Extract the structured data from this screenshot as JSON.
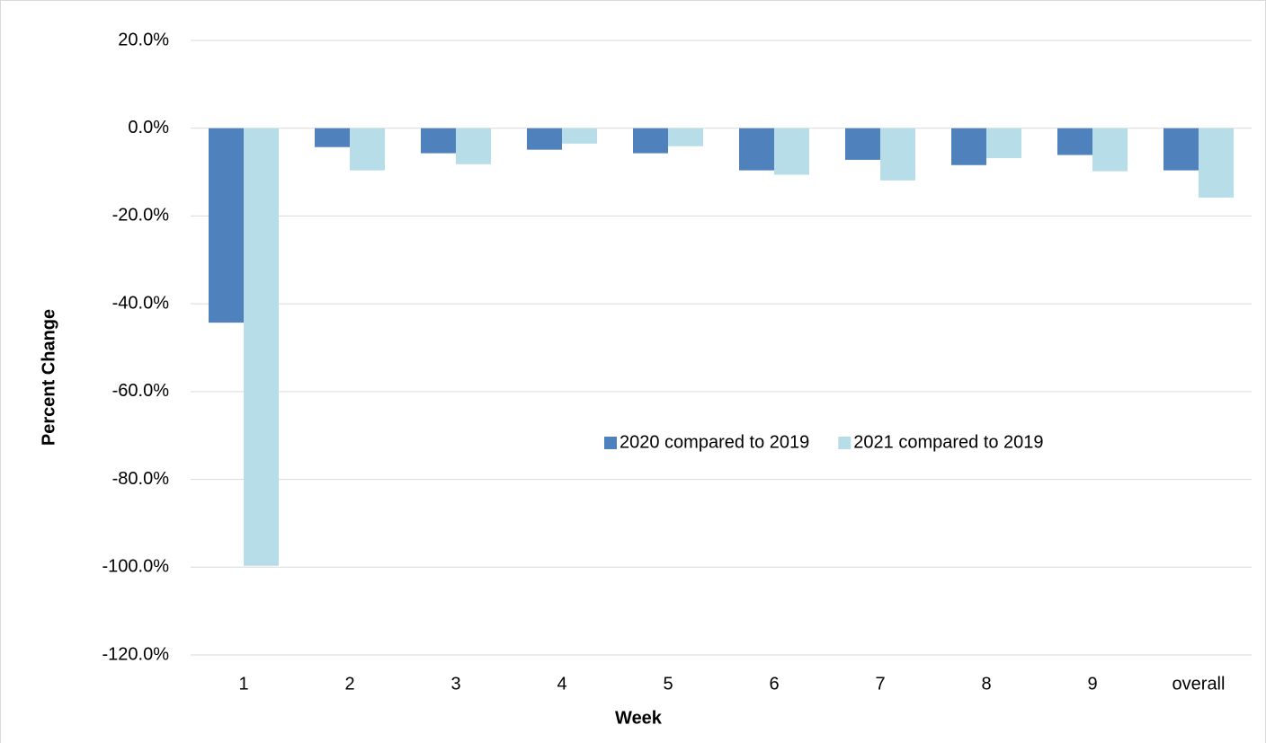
{
  "chart_data": {
    "type": "bar",
    "x_label": "Week",
    "y_label": "Percent Change",
    "categories": [
      "1",
      "2",
      "3",
      "4",
      "5",
      "6",
      "7",
      "8",
      "9",
      "overall"
    ],
    "series": [
      {
        "name": "2020 compared to 2019",
        "color": "#4f81bd",
        "values": [
          -44.3,
          -4.3,
          -5.7,
          -4.9,
          -5.7,
          -9.6,
          -7.2,
          -8.4,
          -6.1,
          -9.6
        ]
      },
      {
        "name": "2021 compared to 2019",
        "color": "#b7dde8",
        "values": [
          -99.7,
          -9.6,
          -8.2,
          -3.5,
          -4.1,
          -10.6,
          -11.9,
          -6.8,
          -9.8,
          -15.8
        ]
      }
    ],
    "ylim": [
      -120,
      20
    ],
    "yticks": [
      {
        "value": -120,
        "label": "-120.0%"
      },
      {
        "value": -100,
        "label": "-100.0%"
      },
      {
        "value": -80,
        "label": "-80.0%"
      },
      {
        "value": -60,
        "label": "-60.0%"
      },
      {
        "value": -40,
        "label": "-40.0%"
      },
      {
        "value": -20,
        "label": "-20.0%"
      },
      {
        "value": 0,
        "label": "0.0%"
      },
      {
        "value": 20,
        "label": "20.0%"
      }
    ],
    "grid": true,
    "legend": "center"
  }
}
